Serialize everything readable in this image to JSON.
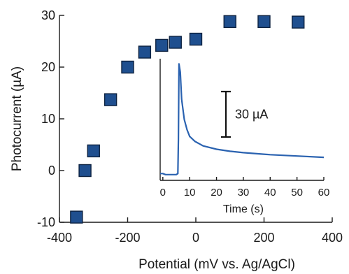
{
  "chart_data": [
    {
      "type": "scatter",
      "xlabel": "Potential (mV  vs. Ag/AgCl)",
      "ylabel": "Photocurrent (µA)",
      "xlim": [
        -400,
        400
      ],
      "ylim": [
        -10,
        30
      ],
      "x_ticks": [
        -400,
        -200,
        0,
        200,
        400
      ],
      "y_ticks": [
        -10,
        0,
        10,
        20,
        30
      ],
      "grid": false,
      "marker": "square",
      "colors": {
        "marker_fill": "#1f4f8f",
        "marker_edge": "#0d2240"
      },
      "series": [
        {
          "x": [
            -350,
            -325,
            -300,
            -250,
            -200,
            -150,
            -100,
            -60,
            0,
            100,
            200,
            300
          ],
          "y": [
            -9,
            0,
            3.8,
            13.7,
            20,
            22.9,
            24.2,
            24.8,
            25.4,
            28.8,
            28.8,
            28.7
          ]
        }
      ]
    },
    {
      "type": "line",
      "role": "inset",
      "xlabel": "Time (s)",
      "ylabel": "",
      "xlim": [
        -1,
        60
      ],
      "x_ticks": [
        0,
        10,
        20,
        30,
        40,
        50,
        60
      ],
      "y_units": "µA",
      "ylim": [
        -2,
        34
      ],
      "scale_bar": {
        "value": 30,
        "label": "30 µA"
      },
      "colors": {
        "line": "#2a62b0"
      },
      "series": [
        {
          "x": [
            -1,
            0,
            1,
            5,
            5.6,
            5.8,
            6,
            6.5,
            7,
            8,
            9,
            10,
            12,
            15,
            20,
            25,
            30,
            40,
            50,
            60
          ],
          "y": [
            0,
            0,
            -0.3,
            -0.3,
            0,
            10,
            32.5,
            30,
            22,
            16,
            13,
            11,
            9.5,
            8.2,
            7.2,
            6.6,
            6.2,
            5.6,
            5.2,
            4.8
          ]
        }
      ]
    }
  ]
}
